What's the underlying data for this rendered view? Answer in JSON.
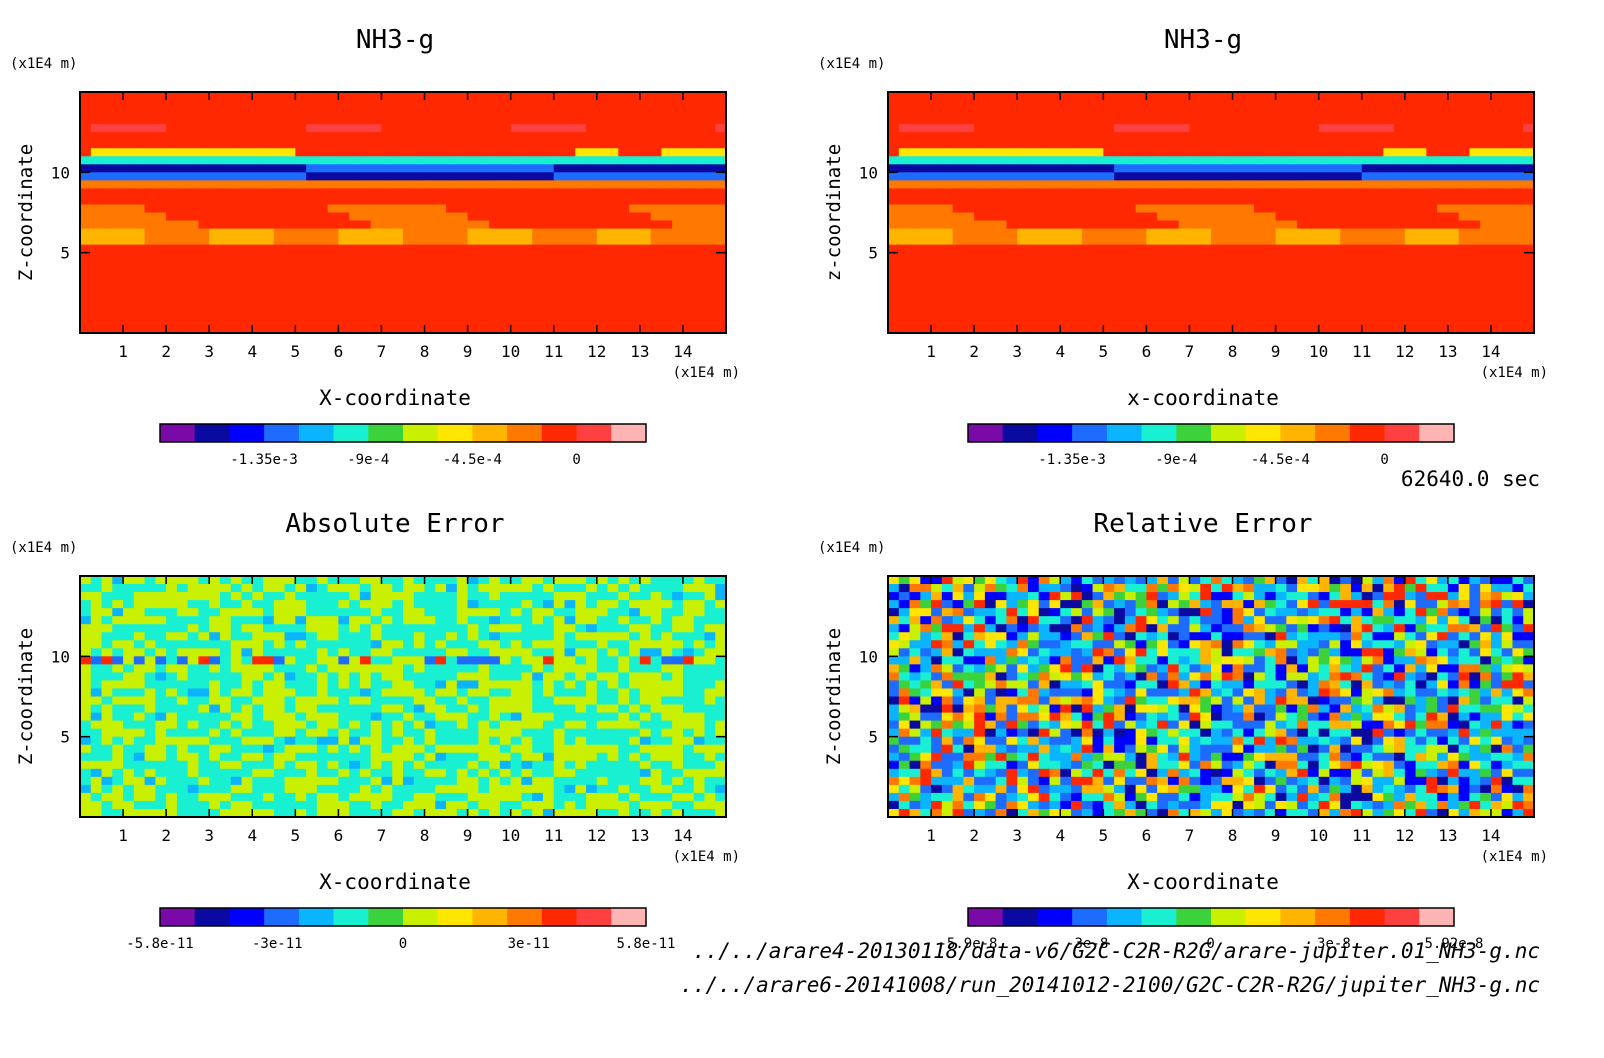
{
  "time_label": "62640.0 sec",
  "file_paths": [
    "../../arare4-20130118/data-v6/G2C-C2R-R2G/arare-jupiter.01_NH3-g.nc",
    "../../arare6-20141008/run_20141012-2100/G2C-C2R-R2G/jupiter_NH3-g.nc"
  ],
  "colors": {
    "levels": [
      "#7a0aa8",
      "#0a0aa0",
      "#0000ff",
      "#1e6bff",
      "#0ab4ff",
      "#19f0d2",
      "#3cd23c",
      "#c8f000",
      "#ffe600",
      "#ffb400",
      "#ff7800",
      "#ff2800",
      "#ff4040",
      "#ffb4b4"
    ]
  },
  "chart_data": [
    {
      "type": "heatmap",
      "title": "NH3-g",
      "xlabel": "X-coordinate",
      "ylabel": "Z-coordinate",
      "x_unit": "(x1E4 m)",
      "y_unit": "(x1E4 m)",
      "xlim": [
        0,
        15
      ],
      "ylim": [
        0,
        15
      ],
      "x_ticks": [
        "1",
        "2",
        "3",
        "4",
        "5",
        "6",
        "7",
        "8",
        "9",
        "10",
        "11",
        "12",
        "13",
        "14"
      ],
      "y_ticks": [
        "5",
        "10"
      ],
      "colorbar_labels": [
        "-1.35e-3",
        "-9e-4",
        "-4.5e-4",
        "0"
      ],
      "colorbar_range": [
        -0.0018,
        0.0003
      ],
      "field": "layered"
    },
    {
      "type": "heatmap",
      "title": "NH3-g",
      "xlabel": "x-coordinate",
      "ylabel": "z-coordinate",
      "x_unit": "(x1E4 m)",
      "y_unit": "(x1E4 m)",
      "xlim": [
        0,
        15
      ],
      "ylim": [
        0,
        15
      ],
      "x_ticks": [
        "1",
        "2",
        "3",
        "4",
        "5",
        "6",
        "7",
        "8",
        "9",
        "10",
        "11",
        "12",
        "13",
        "14"
      ],
      "y_ticks": [
        "5",
        "10"
      ],
      "colorbar_labels": [
        "-1.35e-3",
        "-9e-4",
        "-4.5e-4",
        "0"
      ],
      "colorbar_range": [
        -0.0018,
        0.0003
      ],
      "field": "layered"
    },
    {
      "type": "heatmap",
      "title": "Absolute Error",
      "xlabel": "X-coordinate",
      "ylabel": "Z-coordinate",
      "x_unit": "(x1E4 m)",
      "y_unit": "(x1E4 m)",
      "xlim": [
        0,
        15
      ],
      "ylim": [
        0,
        15
      ],
      "x_ticks": [
        "1",
        "2",
        "3",
        "4",
        "5",
        "6",
        "7",
        "8",
        "9",
        "10",
        "11",
        "12",
        "13",
        "14"
      ],
      "y_ticks": [
        "5",
        "10"
      ],
      "colorbar_labels": [
        "-5.8e-11",
        "-3e-11",
        "0",
        "3e-11",
        "5.8e-11"
      ],
      "colorbar_range": [
        -5.8e-11,
        5.8e-11
      ],
      "field": "noise-narrow"
    },
    {
      "type": "heatmap",
      "title": "Relative Error",
      "xlabel": "X-coordinate",
      "ylabel": "Z-coordinate",
      "x_unit": "(x1E4 m)",
      "y_unit": "(x1E4 m)",
      "xlim": [
        0,
        15
      ],
      "ylim": [
        0,
        15
      ],
      "x_ticks": [
        "1",
        "2",
        "3",
        "4",
        "5",
        "6",
        "7",
        "8",
        "9",
        "10",
        "11",
        "12",
        "13",
        "14"
      ],
      "y_ticks": [
        "5",
        "10"
      ],
      "colorbar_labels": [
        "-5.9e-8",
        "-3e-8",
        "0",
        "3e-8",
        "5.92e-8"
      ],
      "colorbar_range": [
        -5.9e-08,
        5.92e-08
      ],
      "field": "noise-wide"
    }
  ]
}
